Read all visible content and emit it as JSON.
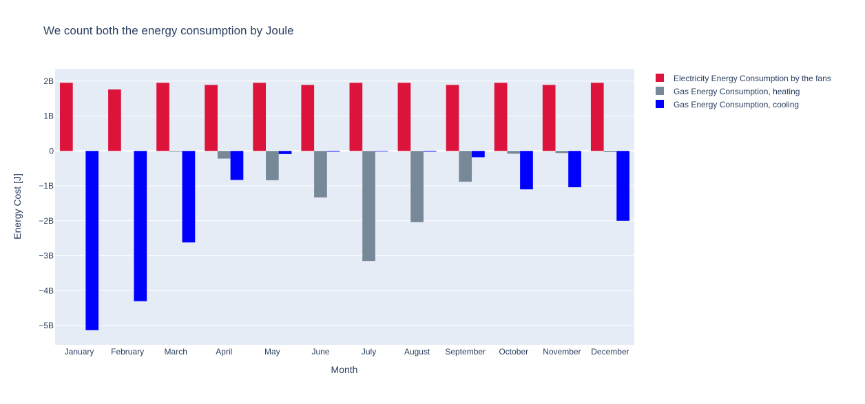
{
  "chart_data": {
    "type": "bar",
    "title": "We count both the energy consumption by Joule",
    "xlabel": "Month",
    "ylabel": "Energy Cost [J]",
    "categories": [
      "January",
      "February",
      "March",
      "April",
      "May",
      "June",
      "July",
      "August",
      "September",
      "October",
      "November",
      "December"
    ],
    "series": [
      {
        "name": "Electricity Energy Consumption by the fans",
        "color": "#dc143c",
        "values": [
          1950000000.0,
          1760000000.0,
          1950000000.0,
          1890000000.0,
          1950000000.0,
          1890000000.0,
          1950000000.0,
          1950000000.0,
          1890000000.0,
          1950000000.0,
          1890000000.0,
          1950000000.0
        ]
      },
      {
        "name": "Gas Energy Consumption, heating",
        "color": "#778899",
        "values": [
          0,
          0,
          -20000000.0,
          -220000000.0,
          -840000000.0,
          -1330000000.0,
          -3150000000.0,
          -2040000000.0,
          -880000000.0,
          -80000000.0,
          -60000000.0,
          -30000000.0
        ]
      },
      {
        "name": "Gas Energy Consumption, cooling",
        "color": "#0000ff",
        "values": [
          -5130000000.0,
          -4300000000.0,
          -2620000000.0,
          -830000000.0,
          -90000000.0,
          -20000000.0,
          -10000000.0,
          -20000000.0,
          -180000000.0,
          -1100000000.0,
          -1040000000.0,
          -2000000000.0
        ]
      }
    ],
    "yticks": [
      2000000000.0,
      1000000000.0,
      0,
      -1000000000.0,
      -2000000000.0,
      -3000000000.0,
      -4000000000.0,
      -5000000000.0
    ],
    "ytick_labels": [
      "2B",
      "1B",
      "0",
      "−1B",
      "−2B",
      "−3B",
      "−4B",
      "−5B"
    ],
    "ylim": [
      -5550000000.0,
      2350000000.0
    ],
    "grid": true,
    "legend_position": "top-right",
    "plot_background": "#e5ecf6"
  }
}
